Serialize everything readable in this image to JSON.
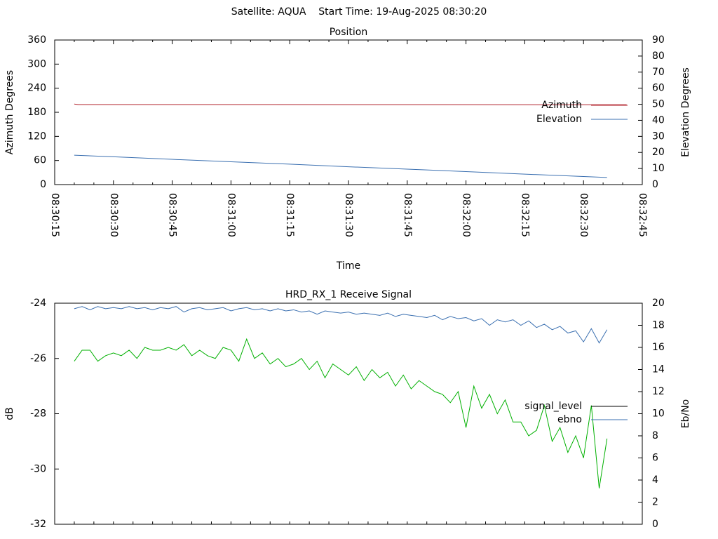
{
  "page_title": "Satellite: AQUA    Start Time: 19-Aug-2025 08:30:20",
  "chart_data": [
    {
      "type": "line",
      "title": "Position",
      "xlabel": "Time",
      "ylabel": "Azimuth Degrees",
      "y2label": "Elevation Degrees",
      "xlim": [
        "08:30:15",
        "08:32:45"
      ],
      "xticks": [
        "08:30:15",
        "08:30:30",
        "08:30:45",
        "08:31:00",
        "08:31:15",
        "08:31:30",
        "08:31:45",
        "08:32:00",
        "08:32:15",
        "08:32:30",
        "08:32:45"
      ],
      "ylim": [
        0,
        360
      ],
      "yticks": [
        0,
        60,
        120,
        180,
        240,
        300,
        360
      ],
      "y2lim": [
        0,
        90
      ],
      "y2ticks": [
        0,
        10,
        20,
        30,
        40,
        50,
        60,
        70,
        80,
        90
      ],
      "legend": "right",
      "series": [
        {
          "name": "Azimuth",
          "color": "#b0202a",
          "axis": "y",
          "x": [
            "08:30:20",
            "08:30:21",
            "08:32:41"
          ],
          "values": [
            200.5,
            199.3,
            198.8
          ]
        },
        {
          "name": "Elevation",
          "color": "#3a6fb0",
          "axis": "y2",
          "x": [
            "08:30:20",
            "08:30:30",
            "08:30:45",
            "08:31:00",
            "08:31:15",
            "08:31:30",
            "08:31:45",
            "08:32:00",
            "08:32:15",
            "08:32:30",
            "08:32:36"
          ],
          "values": [
            18.3,
            17.3,
            15.7,
            14.2,
            12.7,
            11.1,
            9.6,
            8.1,
            6.5,
            5.0,
            4.4
          ]
        }
      ]
    },
    {
      "type": "line",
      "title": "HRD_RX_1 Receive Signal",
      "ylabel": "dB",
      "y2label": "Eb/No",
      "xlim": [
        "08:30:15",
        "08:32:45"
      ],
      "ylim": [
        -32,
        -24
      ],
      "yticks": [
        -32,
        -30,
        -28,
        -26,
        -24
      ],
      "y2lim": [
        0,
        20
      ],
      "y2ticks": [
        0,
        2,
        4,
        6,
        8,
        10,
        12,
        14,
        16,
        18,
        20
      ],
      "legend": "right",
      "x": [
        "08:30:20",
        "08:30:22",
        "08:30:24",
        "08:30:26",
        "08:30:28",
        "08:30:30",
        "08:30:32",
        "08:30:34",
        "08:30:36",
        "08:30:38",
        "08:30:40",
        "08:30:42",
        "08:30:44",
        "08:30:46",
        "08:30:48",
        "08:30:50",
        "08:30:52",
        "08:30:54",
        "08:30:56",
        "08:30:58",
        "08:31:00",
        "08:31:02",
        "08:31:04",
        "08:31:06",
        "08:31:08",
        "08:31:10",
        "08:31:12",
        "08:31:14",
        "08:31:16",
        "08:31:18",
        "08:31:20",
        "08:31:22",
        "08:31:24",
        "08:31:26",
        "08:31:28",
        "08:31:30",
        "08:31:32",
        "08:31:34",
        "08:31:36",
        "08:31:38",
        "08:31:40",
        "08:31:42",
        "08:31:44",
        "08:31:46",
        "08:31:48",
        "08:31:50",
        "08:31:52",
        "08:31:54",
        "08:31:56",
        "08:31:58",
        "08:32:00",
        "08:32:02",
        "08:32:04",
        "08:32:06",
        "08:32:08",
        "08:32:10",
        "08:32:12",
        "08:32:14",
        "08:32:16",
        "08:32:18",
        "08:32:20",
        "08:32:22",
        "08:32:24",
        "08:32:26",
        "08:32:28",
        "08:32:30",
        "08:32:32",
        "08:32:34",
        "08:32:36"
      ],
      "series": [
        {
          "name": "signal_level",
          "color": "#00b000",
          "key_color": "#000000",
          "axis": "y",
          "values": [
            -26.1,
            -25.7,
            -25.7,
            -26.1,
            -25.9,
            -25.8,
            -25.9,
            -25.7,
            -26.0,
            -25.6,
            -25.7,
            -25.7,
            -25.6,
            -25.7,
            -25.5,
            -25.9,
            -25.7,
            -25.9,
            -26.0,
            -25.6,
            -25.7,
            -26.1,
            -25.3,
            -26.0,
            -25.8,
            -26.2,
            -26.0,
            -26.3,
            -26.2,
            -26.0,
            -26.4,
            -26.1,
            -26.7,
            -26.2,
            -26.4,
            -26.6,
            -26.3,
            -26.8,
            -26.4,
            -26.7,
            -26.5,
            -27.0,
            -26.6,
            -27.1,
            -26.8,
            -27.0,
            -27.2,
            -27.3,
            -27.6,
            -27.2,
            -28.5,
            -27.0,
            -27.8,
            -27.3,
            -28.0,
            -27.5,
            -28.3,
            -28.3,
            -28.8,
            -28.6,
            -27.7,
            -29.0,
            -28.5,
            -29.4,
            -28.8,
            -29.6,
            -27.7,
            -30.7,
            -28.9
          ]
        },
        {
          "name": "ebno",
          "color": "#3a6fb0",
          "axis": "y2",
          "values": [
            19.5,
            19.7,
            19.4,
            19.7,
            19.5,
            19.6,
            19.5,
            19.7,
            19.5,
            19.6,
            19.4,
            19.6,
            19.5,
            19.7,
            19.2,
            19.5,
            19.6,
            19.4,
            19.5,
            19.6,
            19.3,
            19.5,
            19.6,
            19.4,
            19.5,
            19.3,
            19.5,
            19.3,
            19.4,
            19.2,
            19.3,
            19.0,
            19.3,
            19.2,
            19.1,
            19.2,
            19.0,
            19.1,
            19.0,
            18.9,
            19.1,
            18.8,
            19.0,
            18.9,
            18.8,
            18.7,
            18.9,
            18.5,
            18.8,
            18.6,
            18.7,
            18.4,
            18.6,
            18.0,
            18.5,
            18.3,
            18.5,
            18.0,
            18.4,
            17.8,
            18.1,
            17.6,
            17.9,
            17.3,
            17.5,
            16.5,
            17.7,
            16.4,
            17.6
          ]
        }
      ]
    }
  ]
}
